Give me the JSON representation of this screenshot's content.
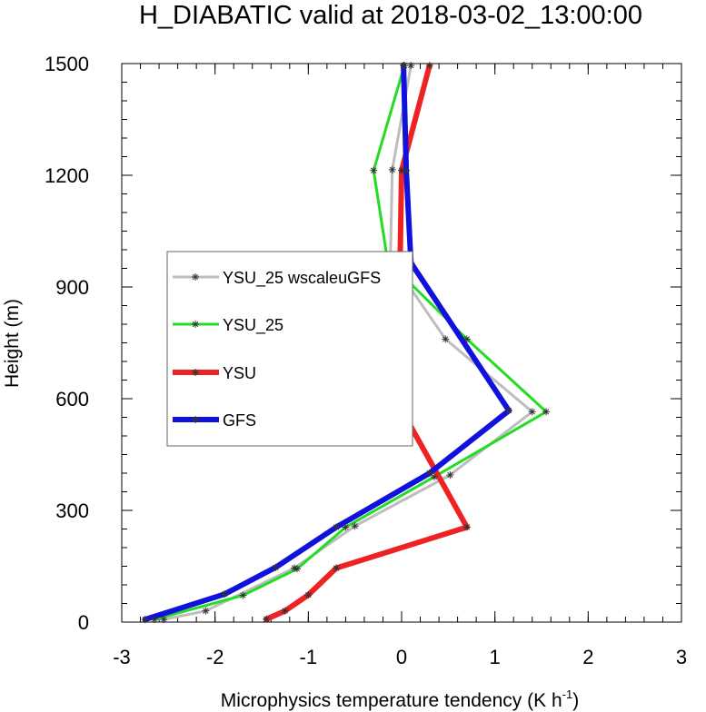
{
  "chart_data": {
    "type": "line",
    "title": "H_DIABATIC valid at 2018-03-02_13:00:00",
    "xlabel": "Microphysics temperature tendency (K h",
    "xlabel_sup": "-1",
    "xlabel_close": ")",
    "ylabel": "Height (m)",
    "xlim": [
      -3,
      3
    ],
    "ylim": [
      0,
      1500
    ],
    "xticks": [
      -3,
      -2,
      -1,
      0,
      1,
      2,
      3
    ],
    "xtick_labels": [
      "-3",
      "-2",
      "-1",
      "0",
      "1",
      "2",
      "3"
    ],
    "yticks": [
      0,
      300,
      600,
      900,
      1200,
      1500
    ],
    "ytick_labels": [
      "0",
      "300",
      "600",
      "900",
      "1200",
      "1500"
    ],
    "grid": false,
    "legend_position": "left-middle",
    "series": [
      {
        "name": "YSU_25 wscaleuGFS",
        "color": "#bdbdbd",
        "width": 3,
        "x": [
          -2.55,
          -2.1,
          -1.15,
          -0.5,
          0.52,
          1.4,
          0.47,
          -0.12,
          -0.1,
          0.1
        ],
        "y": [
          7,
          30,
          145,
          258,
          395,
          565,
          760,
          975,
          1215,
          1495
        ]
      },
      {
        "name": "YSU_25",
        "color": "#22dd22",
        "width": 3,
        "x": [
          -2.65,
          -1.7,
          -1.12,
          -0.6,
          0.35,
          1.55,
          0.7,
          -0.15,
          -0.3,
          0.03
        ],
        "y": [
          7,
          72,
          143,
          255,
          390,
          565,
          760,
          970,
          1213,
          1495
        ]
      },
      {
        "name": "YSU",
        "color": "#ee2222",
        "width": 6,
        "x": [
          -1.45,
          -1.25,
          -1.0,
          -0.7,
          0.7,
          0.0,
          -0.03,
          0.0,
          0.3
        ],
        "y": [
          8,
          30,
          73,
          145,
          255,
          570,
          760,
          1213,
          1495
        ]
      },
      {
        "name": "GFS",
        "color": "#1111dd",
        "width": 6,
        "x": [
          -2.75,
          -1.9,
          -1.35,
          -0.7,
          0.3,
          1.15,
          0.1,
          0.05,
          0.02
        ],
        "y": [
          7,
          75,
          147,
          255,
          400,
          568,
          965,
          1213,
          1495
        ]
      }
    ]
  }
}
